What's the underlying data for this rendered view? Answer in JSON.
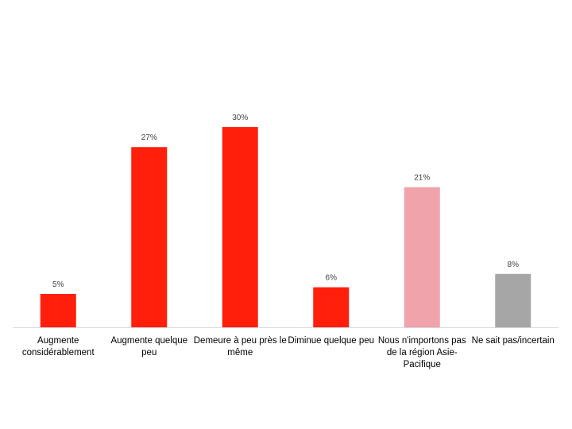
{
  "chart_data": {
    "type": "bar",
    "categories": [
      "Augmente considérablement",
      "Augmente quelque peu",
      "Demeure à peu près le même",
      "Diminue quelque peu",
      "Nous n'importons pas de la région Asie-Pacifique",
      "Ne sait pas/incertain"
    ],
    "values": [
      5,
      27,
      30,
      6,
      21,
      8
    ],
    "value_labels": [
      "5%",
      "27%",
      "30%",
      "6%",
      "21%",
      "8%"
    ],
    "colors": [
      "#ff1f0a",
      "#ff1f0a",
      "#ff1f0a",
      "#ff1f0a",
      "#f0a3aa",
      "#a6a6a6"
    ]
  }
}
